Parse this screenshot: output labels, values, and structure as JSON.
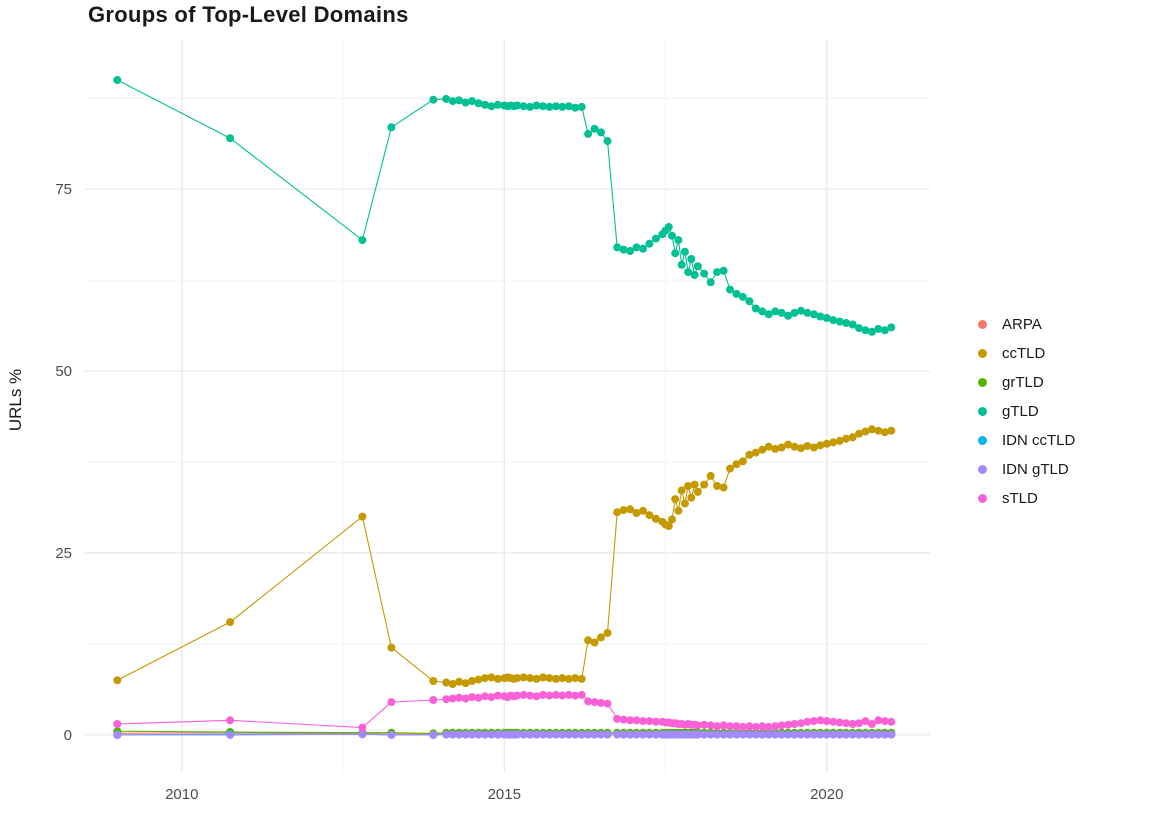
{
  "title": "Groups of Top-Level Domains",
  "axes": {
    "y_label": "URLs %",
    "y_ticks": [
      0,
      25,
      50,
      75
    ],
    "x_ticks": [
      2010,
      2015,
      2020
    ],
    "y_minor": [
      12.5,
      37.5,
      62.5,
      87.5
    ],
    "x_minor": [
      2012.5,
      2017.5
    ],
    "x_range": [
      2008.5,
      2021.6
    ],
    "y_range": [
      -5.1,
      95.5
    ],
    "grid_major_color": "#e8e8e8",
    "grid_minor_color": "#f3f3f3",
    "tick_text_color": "#4d4d4d"
  },
  "chart_data": {
    "type": "line",
    "title": "Groups of Top-Level Domains",
    "xlabel": "",
    "ylabel": "URLs %",
    "legend_position": "right",
    "grid": true,
    "ylim": [
      0,
      95
    ],
    "marker": "point",
    "x": [
      2009,
      2010.75,
      2012.8,
      2013.25,
      2013.9,
      2014.1,
      2014.2,
      2014.3,
      2014.4,
      2014.5,
      2014.6,
      2014.7,
      2014.8,
      2014.9,
      2015.0,
      2015.05,
      2015.1,
      2015.15,
      2015.2,
      2015.3,
      2015.4,
      2015.5,
      2015.6,
      2015.7,
      2015.8,
      2015.9,
      2016.0,
      2016.1,
      2016.2,
      2016.3,
      2016.4,
      2016.5,
      2016.6,
      2016.75,
      2016.85,
      2016.95,
      2017.05,
      2017.15,
      2017.25,
      2017.35,
      2017.45,
      2017.5,
      2017.55,
      2017.6,
      2017.65,
      2017.7,
      2017.75,
      2017.8,
      2017.85,
      2017.9,
      2017.95,
      2018.0,
      2018.1,
      2018.2,
      2018.3,
      2018.4,
      2018.5,
      2018.6,
      2018.7,
      2018.8,
      2018.9,
      2019.0,
      2019.1,
      2019.2,
      2019.3,
      2019.4,
      2019.5,
      2019.6,
      2019.7,
      2019.8,
      2019.9,
      2020.0,
      2020.1,
      2020.2,
      2020.3,
      2020.4,
      2020.5,
      2020.6,
      2020.7,
      2020.8,
      2020.9,
      2021.0
    ],
    "series": [
      {
        "name": "ARPA",
        "color": "#F8766D",
        "values": [
          0.2,
          0.3,
          0.2,
          0.1,
          0.1,
          0.1,
          0.1,
          0.1,
          0.1,
          0.1,
          0.1,
          0.1,
          0.1,
          0.1,
          0.1,
          0.1,
          0.1,
          0.1,
          0.1,
          0.1,
          0.1,
          0.1,
          0.1,
          0.1,
          0.1,
          0.1,
          0.1,
          0.1,
          0.1,
          0.1,
          0.1,
          0.1,
          0.1,
          0.1,
          0.1,
          0.1,
          0.1,
          0.1,
          0.1,
          0.1,
          0.1,
          0.1,
          0.1,
          0.1,
          0.1,
          0.1,
          0.1,
          0.1,
          0.1,
          0.1,
          0.1,
          0.1,
          0.1,
          0.1,
          0.1,
          0.1,
          0.1,
          0.1,
          0.1,
          0.1,
          0.1,
          0.1,
          0.1,
          0.1,
          0.1,
          0.1,
          0.1,
          0.1,
          0.1,
          0.1,
          0.1,
          0.1,
          0.1,
          0.1,
          0.1,
          0.1,
          0.1,
          0.1,
          0.1,
          0.1,
          0.1,
          0.1
        ]
      },
      {
        "name": "ccTLD",
        "color": "#C49A00",
        "values": [
          7.5,
          15.5,
          30.0,
          12.0,
          7.4,
          7.2,
          7.0,
          7.3,
          7.1,
          7.4,
          7.6,
          7.8,
          7.9,
          7.7,
          7.8,
          7.9,
          7.8,
          7.7,
          7.8,
          7.9,
          7.8,
          7.7,
          7.9,
          7.8,
          7.7,
          7.8,
          7.7,
          7.8,
          7.7,
          13.0,
          12.7,
          13.4,
          14.0,
          30.6,
          30.9,
          31.0,
          30.5,
          30.8,
          30.2,
          29.7,
          29.3,
          28.9,
          28.7,
          29.6,
          32.4,
          30.8,
          33.6,
          31.8,
          34.2,
          32.6,
          34.4,
          33.4,
          34.4,
          35.6,
          34.2,
          34.0,
          36.6,
          37.2,
          37.6,
          38.5,
          38.8,
          39.2,
          39.6,
          39.3,
          39.5,
          39.9,
          39.6,
          39.4,
          39.7,
          39.5,
          39.8,
          40.0,
          40.2,
          40.4,
          40.7,
          40.9,
          41.4,
          41.7,
          42.0,
          41.8,
          41.6,
          41.8
        ]
      },
      {
        "name": "grTLD",
        "color": "#53B400",
        "values": [
          0.5,
          0.4,
          0.3,
          0.3,
          0.2,
          0.3,
          0.3,
          0.3,
          0.3,
          0.3,
          0.3,
          0.3,
          0.3,
          0.3,
          0.3,
          0.3,
          0.3,
          0.3,
          0.3,
          0.3,
          0.3,
          0.3,
          0.3,
          0.3,
          0.3,
          0.3,
          0.3,
          0.3,
          0.3,
          0.3,
          0.3,
          0.3,
          0.3,
          0.3,
          0.3,
          0.3,
          0.3,
          0.3,
          0.3,
          0.3,
          0.3,
          0.3,
          0.3,
          0.3,
          0.3,
          0.3,
          0.3,
          0.3,
          0.3,
          0.3,
          0.3,
          0.3,
          0.3,
          0.3,
          0.3,
          0.3,
          0.3,
          0.3,
          0.3,
          0.3,
          0.3,
          0.3,
          0.3,
          0.3,
          0.3,
          0.3,
          0.3,
          0.3,
          0.3,
          0.3,
          0.3,
          0.3,
          0.3,
          0.3,
          0.3,
          0.3,
          0.3,
          0.3,
          0.3,
          0.3,
          0.3,
          0.3
        ]
      },
      {
        "name": "gTLD",
        "color": "#00C094",
        "values": [
          90,
          82,
          68,
          83.5,
          87.3,
          87.4,
          87.1,
          87.2,
          86.9,
          87.1,
          86.8,
          86.6,
          86.4,
          86.6,
          86.5,
          86.4,
          86.5,
          86.4,
          86.5,
          86.4,
          86.3,
          86.5,
          86.4,
          86.3,
          86.4,
          86.3,
          86.4,
          86.2,
          86.3,
          82.6,
          83.3,
          82.8,
          81.6,
          67.0,
          66.7,
          66.5,
          67.0,
          66.8,
          67.5,
          68.2,
          68.8,
          69.3,
          69.8,
          68.6,
          66.2,
          68.0,
          64.6,
          66.4,
          63.6,
          65.4,
          63.2,
          64.4,
          63.4,
          62.2,
          63.6,
          63.8,
          61.2,
          60.6,
          60.2,
          59.6,
          58.6,
          58.2,
          57.8,
          58.2,
          58.0,
          57.6,
          58.0,
          58.3,
          58.0,
          57.8,
          57.5,
          57.3,
          57.0,
          56.8,
          56.6,
          56.4,
          55.9,
          55.6,
          55.4,
          55.8,
          55.6,
          56.0
        ]
      },
      {
        "name": "IDN ccTLD",
        "color": "#00B6EB",
        "values": [
          0.0,
          0.1,
          0.1,
          0.0,
          0.0,
          0.05,
          0.05,
          0.05,
          0.05,
          0.05,
          0.05,
          0.05,
          0.05,
          0.05,
          0.05,
          0.05,
          0.05,
          0.05,
          0.05,
          0.05,
          0.05,
          0.05,
          0.05,
          0.05,
          0.05,
          0.05,
          0.05,
          0.05,
          0.05,
          0.05,
          0.05,
          0.05,
          0.05,
          0.05,
          0.05,
          0.05,
          0.05,
          0.05,
          0.05,
          0.05,
          0.05,
          0.05,
          0.05,
          0.05,
          0.05,
          0.05,
          0.05,
          0.05,
          0.05,
          0.05,
          0.05,
          0.05,
          0.05,
          0.05,
          0.05,
          0.05,
          0.05,
          0.05,
          0.05,
          0.05,
          0.05,
          0.05,
          0.05,
          0.05,
          0.05,
          0.05,
          0.05,
          0.05,
          0.05,
          0.05,
          0.05,
          0.05,
          0.05,
          0.05,
          0.05,
          0.05,
          0.05,
          0.05,
          0.05,
          0.05,
          0.05,
          0.05
        ]
      },
      {
        "name": "IDN gTLD",
        "color": "#A58AFF",
        "values": [
          0.0,
          0.0,
          0.1,
          0.0,
          0.0,
          0.05,
          0.05,
          0.05,
          0.05,
          0.05,
          0.05,
          0.05,
          0.05,
          0.05,
          0.05,
          0.05,
          0.05,
          0.05,
          0.05,
          0.05,
          0.05,
          0.05,
          0.05,
          0.05,
          0.05,
          0.05,
          0.05,
          0.05,
          0.05,
          0.05,
          0.05,
          0.05,
          0.05,
          0.05,
          0.05,
          0.05,
          0.05,
          0.05,
          0.05,
          0.05,
          0.05,
          0.05,
          0.05,
          0.05,
          0.05,
          0.05,
          0.05,
          0.05,
          0.05,
          0.05,
          0.05,
          0.05,
          0.05,
          0.05,
          0.05,
          0.05,
          0.05,
          0.05,
          0.05,
          0.05,
          0.05,
          0.05,
          0.05,
          0.05,
          0.05,
          0.05,
          0.05,
          0.05,
          0.05,
          0.05,
          0.05,
          0.05,
          0.05,
          0.05,
          0.05,
          0.05,
          0.05,
          0.05,
          0.05,
          0.05,
          0.05,
          0.05
        ]
      },
      {
        "name": "sTLD",
        "color": "#FB61D7",
        "values": [
          1.5,
          2.0,
          1.0,
          4.5,
          4.8,
          4.9,
          5.0,
          5.1,
          5.0,
          5.2,
          5.1,
          5.3,
          5.2,
          5.4,
          5.3,
          5.2,
          5.4,
          5.3,
          5.4,
          5.5,
          5.4,
          5.3,
          5.5,
          5.4,
          5.5,
          5.4,
          5.5,
          5.4,
          5.5,
          4.6,
          4.5,
          4.4,
          4.3,
          2.2,
          2.1,
          2.0,
          2.0,
          1.9,
          1.9,
          1.8,
          1.8,
          1.7,
          1.7,
          1.6,
          1.6,
          1.5,
          1.5,
          1.4,
          1.5,
          1.4,
          1.4,
          1.3,
          1.4,
          1.3,
          1.2,
          1.3,
          1.2,
          1.2,
          1.1,
          1.2,
          1.1,
          1.2,
          1.1,
          1.2,
          1.3,
          1.4,
          1.5,
          1.6,
          1.8,
          1.9,
          2.0,
          1.9,
          1.8,
          1.7,
          1.6,
          1.5,
          1.6,
          1.9,
          1.5,
          2.0,
          1.9,
          1.8
        ]
      }
    ]
  }
}
